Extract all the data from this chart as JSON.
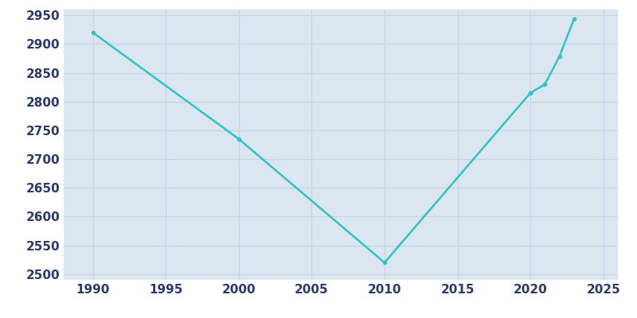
{
  "years": [
    1990,
    2000,
    2010,
    2020,
    2021,
    2022,
    2023
  ],
  "population": [
    2920,
    2735,
    2520,
    2815,
    2830,
    2879,
    2944
  ],
  "line_color": "#2ec4c4",
  "marker": "o",
  "marker_size": 3,
  "bg_color": "#dce6f0",
  "plot_bg_color": "#dce6f0",
  "fig_bg_color": "#ffffff",
  "grid_color": "#c5d3e8",
  "xlim": [
    1988,
    2026
  ],
  "ylim": [
    2490,
    2960
  ],
  "xticks": [
    1990,
    1995,
    2000,
    2005,
    2010,
    2015,
    2020,
    2025
  ],
  "yticks": [
    2500,
    2550,
    2600,
    2650,
    2700,
    2750,
    2800,
    2850,
    2900,
    2950
  ],
  "tick_label_color": "#2b3a6b",
  "tick_fontsize": 11,
  "line_width": 1.8
}
